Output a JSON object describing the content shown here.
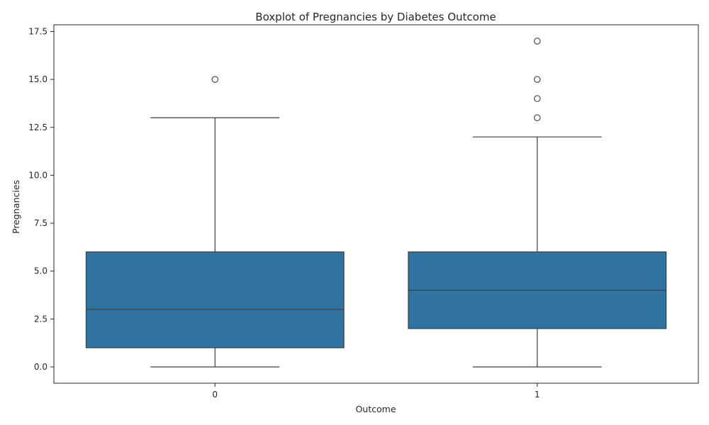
{
  "chart_data": {
    "type": "box",
    "title": "Boxplot of Pregnancies by Diabetes Outcome",
    "xlabel": "Outcome",
    "ylabel": "Pregnancies",
    "categories": [
      "0",
      "1"
    ],
    "ylim": [
      -0.85,
      17.85
    ],
    "yticks": [
      0.0,
      2.5,
      5.0,
      7.5,
      10.0,
      12.5,
      15.0,
      17.5
    ],
    "ytick_labels": [
      "0.0",
      "2.5",
      "5.0",
      "7.5",
      "10.0",
      "12.5",
      "15.0",
      "17.5"
    ],
    "grid": false,
    "colors": {
      "box_fill": "#3274a1",
      "line": "#3d3d3d",
      "axis": "#262626"
    },
    "boxes": [
      {
        "category": "0",
        "whisker_low": 0,
        "q1": 1,
        "median": 3,
        "q3": 6,
        "whisker_high": 13,
        "outliers": [
          15
        ]
      },
      {
        "category": "1",
        "whisker_low": 0,
        "q1": 2,
        "median": 4,
        "q3": 6,
        "whisker_high": 12,
        "outliers": [
          13,
          14,
          15,
          17
        ]
      }
    ]
  }
}
